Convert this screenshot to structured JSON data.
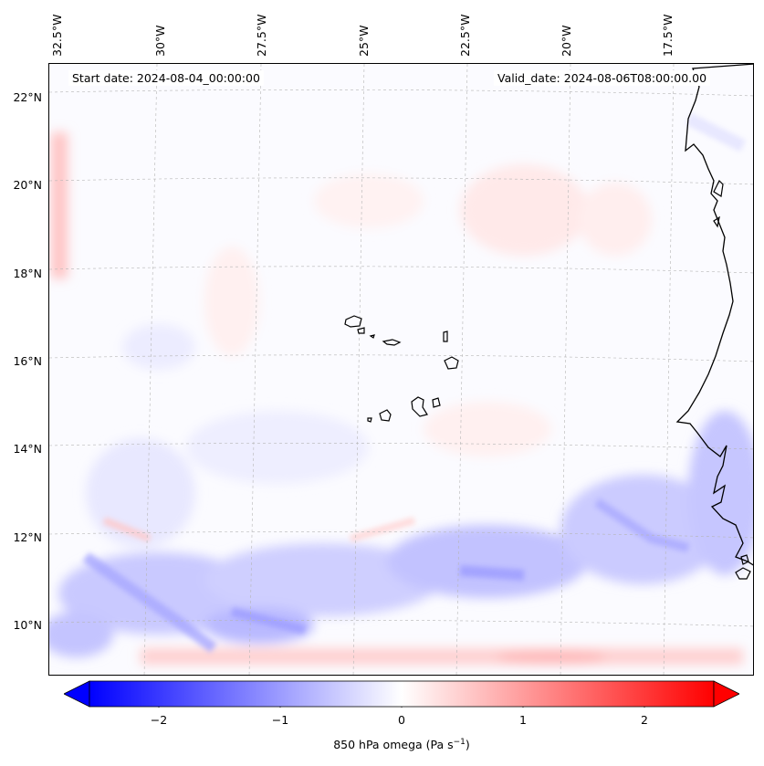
{
  "header": {
    "start_date": "Start date: 2024-08-04_00:00:00",
    "valid_date": "Valid_date: 2024-08-06T08:00:00.00"
  },
  "map": {
    "lon_labels": [
      "32.5°W",
      "30°W",
      "27.5°W",
      "25°W",
      "22.5°W",
      "20°W",
      "17.5°W"
    ],
    "lat_labels": [
      "22°N",
      "20°N",
      "18°N",
      "16°N",
      "14°N",
      "12°N",
      "10°N"
    ],
    "field": "850 hPa omega",
    "colors": {
      "negative": "#0000ff",
      "zero": "#ffffff",
      "positive": "#ff0000",
      "coast": "#000000"
    }
  },
  "colorbar": {
    "ticks": [
      "−2",
      "−1",
      "0",
      "1",
      "2"
    ],
    "label_main": "850 hPa omega (Pa s",
    "label_sup": "−1",
    "label_end": ")",
    "range": [
      -2.6,
      2.6
    ],
    "extend": "both"
  }
}
